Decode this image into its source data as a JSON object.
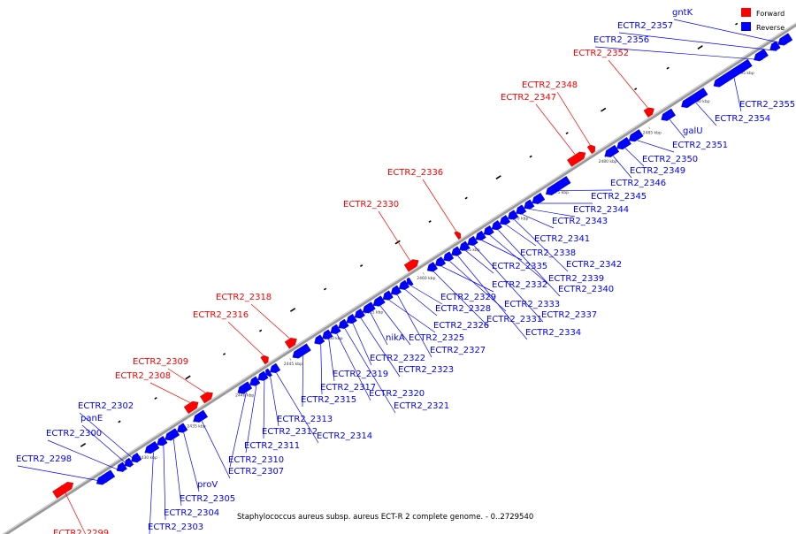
{
  "title": "Staphylococcus aureus subsp. aureus ECT-R 2 complete genome. - 0..2729540",
  "legend": [
    {
      "label": "Forward",
      "color": "#ff0000"
    },
    {
      "label": "Reverse",
      "color": "#0000ff"
    }
  ],
  "colors": {
    "forward": "#ff0000",
    "reverse": "#0000ff",
    "backbone": "#999999"
  },
  "ticks": [
    "2430 kbp",
    "2435 kbp",
    "2440 kbp",
    "2445 kbp",
    "2450 kbp",
    "2455 kbp",
    "2460 kbp",
    "2465 kbp",
    "2470 kbp",
    "2475 kbp",
    "2480 kbp",
    "2485 kbp",
    "2490 kbp",
    "2495 kbp"
  ],
  "genes": [
    {
      "name": "ECTR2_2299",
      "strand": "forward"
    },
    {
      "name": "ECTR2_2298",
      "strand": "reverse"
    },
    {
      "name": "ECTR2_2300",
      "strand": "reverse"
    },
    {
      "name": "panE",
      "strand": "reverse"
    },
    {
      "name": "ECTR2_2302",
      "strand": "reverse"
    },
    {
      "name": "ECTR2_2303",
      "strand": "reverse"
    },
    {
      "name": "ECTR2_2304",
      "strand": "reverse"
    },
    {
      "name": "ECTR2_2305",
      "strand": "reverse"
    },
    {
      "name": "proV",
      "strand": "reverse"
    },
    {
      "name": "ECTR2_2307",
      "strand": "reverse"
    },
    {
      "name": "ECTR2_2308",
      "strand": "forward"
    },
    {
      "name": "ECTR2_2309",
      "strand": "forward"
    },
    {
      "name": "ECTR2_2310",
      "strand": "reverse"
    },
    {
      "name": "ECTR2_2311",
      "strand": "reverse"
    },
    {
      "name": "ECTR2_2312",
      "strand": "reverse"
    },
    {
      "name": "ECTR2_2313",
      "strand": "reverse"
    },
    {
      "name": "ECTR2_2314",
      "strand": "reverse"
    },
    {
      "name": "ECTR2_2315",
      "strand": "reverse"
    },
    {
      "name": "ECTR2_2316",
      "strand": "forward"
    },
    {
      "name": "ECTR2_2317",
      "strand": "reverse"
    },
    {
      "name": "ECTR2_2318",
      "strand": "forward"
    },
    {
      "name": "ECTR2_2319",
      "strand": "reverse"
    },
    {
      "name": "ECTR2_2320",
      "strand": "reverse"
    },
    {
      "name": "ECTR2_2321",
      "strand": "reverse"
    },
    {
      "name": "ECTR2_2322",
      "strand": "reverse"
    },
    {
      "name": "ECTR2_2323",
      "strand": "reverse"
    },
    {
      "name": "nikA",
      "strand": "reverse"
    },
    {
      "name": "ECTR2_2325",
      "strand": "reverse"
    },
    {
      "name": "ECTR2_2326",
      "strand": "reverse"
    },
    {
      "name": "ECTR2_2327",
      "strand": "reverse"
    },
    {
      "name": "ECTR2_2328",
      "strand": "reverse"
    },
    {
      "name": "ECTR2_2329",
      "strand": "reverse"
    },
    {
      "name": "ECTR2_2330",
      "strand": "forward"
    },
    {
      "name": "ECTR2_2331",
      "strand": "reverse"
    },
    {
      "name": "ECTR2_2332",
      "strand": "reverse"
    },
    {
      "name": "ECTR2_2333",
      "strand": "reverse"
    },
    {
      "name": "ECTR2_2334",
      "strand": "reverse"
    },
    {
      "name": "ECTR2_2335",
      "strand": "reverse"
    },
    {
      "name": "ECTR2_2336",
      "strand": "forward"
    },
    {
      "name": "ECTR2_2337",
      "strand": "reverse"
    },
    {
      "name": "ECTR2_2338",
      "strand": "reverse"
    },
    {
      "name": "ECTR2_2339",
      "strand": "reverse"
    },
    {
      "name": "ECTR2_2340",
      "strand": "reverse"
    },
    {
      "name": "ECTR2_2341",
      "strand": "reverse"
    },
    {
      "name": "ECTR2_2342",
      "strand": "reverse"
    },
    {
      "name": "ECTR2_2343",
      "strand": "reverse"
    },
    {
      "name": "ECTR2_2344",
      "strand": "reverse"
    },
    {
      "name": "ECTR2_2345",
      "strand": "reverse"
    },
    {
      "name": "ECTR2_2346",
      "strand": "reverse"
    },
    {
      "name": "ECTR2_2347",
      "strand": "forward"
    },
    {
      "name": "ECTR2_2348",
      "strand": "forward"
    },
    {
      "name": "ECTR2_2349",
      "strand": "reverse"
    },
    {
      "name": "ECTR2_2350",
      "strand": "reverse"
    },
    {
      "name": "ECTR2_2351",
      "strand": "reverse"
    },
    {
      "name": "ECTR2_2352",
      "strand": "forward"
    },
    {
      "name": "galU",
      "strand": "reverse"
    },
    {
      "name": "ECTR2_2354",
      "strand": "reverse"
    },
    {
      "name": "ECTR2_2355",
      "strand": "reverse"
    },
    {
      "name": "ECTR2_2356",
      "strand": "reverse"
    },
    {
      "name": "ECTR2_2357",
      "strand": "reverse"
    },
    {
      "name": "gntK",
      "strand": "reverse"
    }
  ]
}
